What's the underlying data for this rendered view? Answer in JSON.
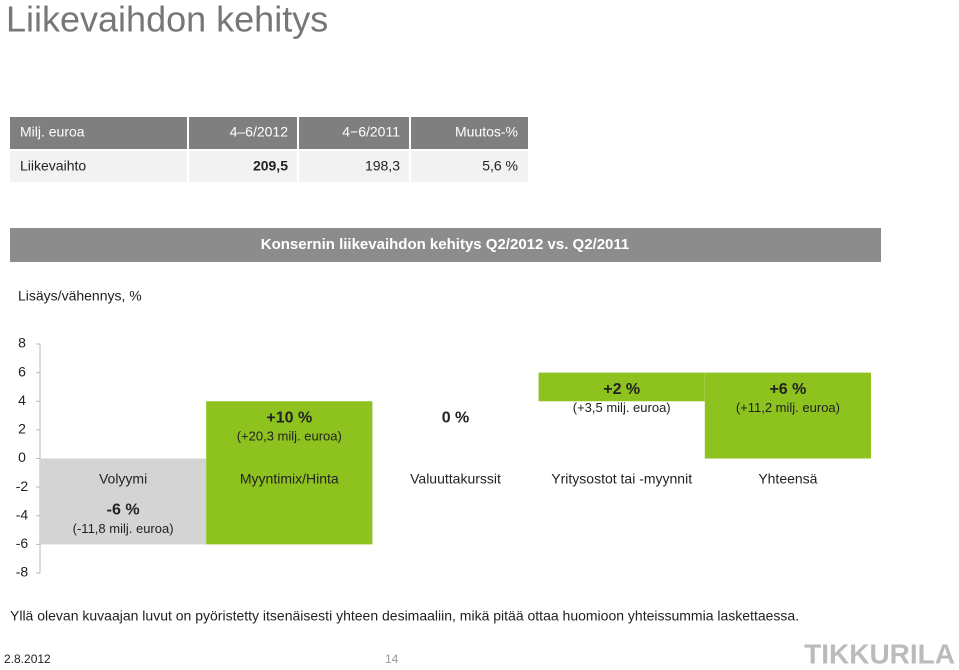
{
  "title": "Liikevaihdon kehitys",
  "table": {
    "header": [
      "Milj. euroa",
      "4–6/2012",
      "4−6/2011",
      "Muutos-%"
    ],
    "rows": [
      [
        "Liikevaihto",
        "209,5",
        "198,3",
        "5,6 %"
      ]
    ]
  },
  "chart_data": {
    "type": "waterfall",
    "title": "Konsernin liikevaihdon kehitys Q2/2012 vs. Q2/2011",
    "ylabel": "Lisäys/vähennys, %",
    "categories": [
      "Volyymi",
      "Myyntimix/Hinta",
      "Valuuttakurssit",
      "Yritysostot tai -myynnit",
      "Yhteensä"
    ],
    "values": [
      -6,
      10,
      0,
      2,
      6
    ],
    "value_labels": [
      "-6 %",
      "+10 %",
      "0 %",
      "+2 %",
      "+6 %"
    ],
    "annotations": [
      "(-11,8 milj. euroa)",
      "(+20,3 milj. euroa)",
      null,
      "(+3,5 milj. euroa)",
      "(+11,2 milj. euroa)"
    ],
    "colors": [
      "#d4d4d4",
      "#8dc21f",
      "#8dc21f",
      "#8dc21f",
      "#8dc21f"
    ],
    "ylim": [
      -8,
      8
    ],
    "yticks": [
      8,
      6,
      4,
      2,
      0,
      -2,
      -4,
      -6,
      -8
    ]
  },
  "footnote": "Yllä olevan kuvaajan luvut on pyöristetty itsenäisesti yhteen desimaaliin, mikä pitää ottaa huomioon yhteissummia laskettaessa.",
  "footer": {
    "date": "2.8.2012",
    "page": "14",
    "logo": "TIKKURILA"
  }
}
